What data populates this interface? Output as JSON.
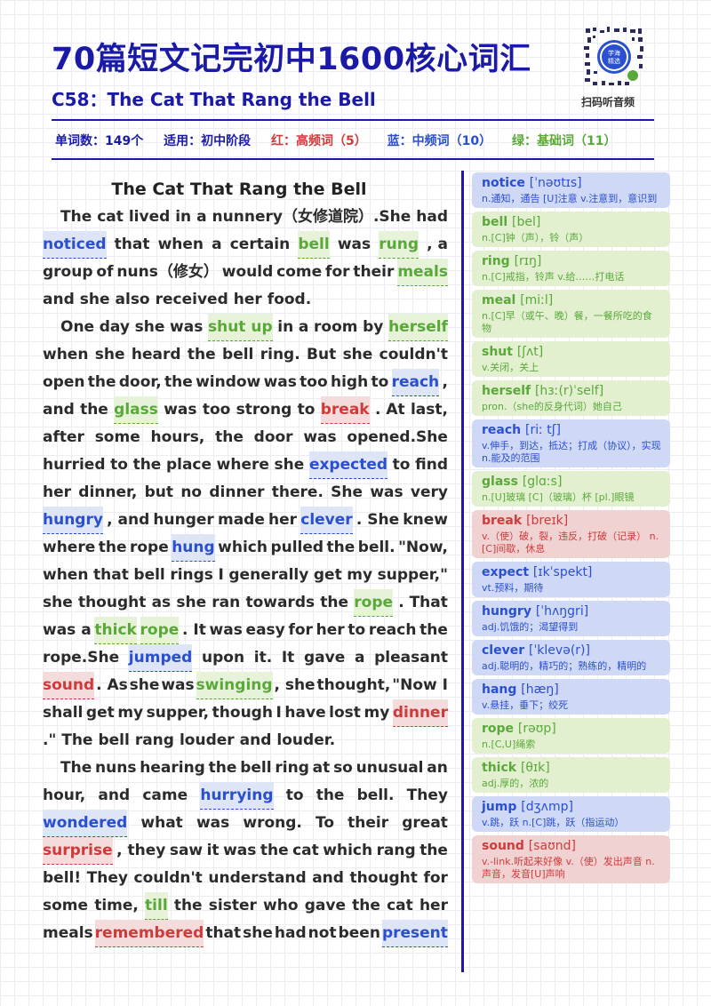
{
  "header": {
    "title": "70篇短文记完初中1600核心词汇",
    "subtitle": "C58：The Cat That Rang the Bell",
    "qr_label": "扫码听音频",
    "qr_badge": "学海 精选"
  },
  "stats": {
    "word_count": "单词数：149个",
    "level": "适用：初中阶段",
    "red": "红：高频词（5）",
    "blue": "蓝：中频词（10）",
    "green": "绿：基础词（11）"
  },
  "colors": {
    "red": "#d13a3a",
    "blue": "#2a4fcf",
    "green": "#5aa83a",
    "navy": "#1a1aa6"
  },
  "article": {
    "title": "The Cat That Rang the Bell",
    "lines": [
      {
        "indent": true,
        "tokens": [
          {
            "t": "The"
          },
          {
            "t": "cat"
          },
          {
            "t": "lived"
          },
          {
            "t": "in"
          },
          {
            "t": "a"
          },
          {
            "t": "nunnery（女修道院）.She"
          },
          {
            "t": "had"
          }
        ]
      },
      {
        "tokens": [
          {
            "t": "noticed",
            "c": "b"
          },
          {
            "t": "that"
          },
          {
            "t": "when"
          },
          {
            "t": "a"
          },
          {
            "t": "certain"
          },
          {
            "t": "bell",
            "c": "g"
          },
          {
            "t": "was"
          },
          {
            "t": "rung",
            "c": "g"
          },
          {
            "t": ", a"
          }
        ]
      },
      {
        "tokens": [
          {
            "t": "group"
          },
          {
            "t": "of"
          },
          {
            "t": "nuns（修女）"
          },
          {
            "t": "would"
          },
          {
            "t": "come"
          },
          {
            "t": "for"
          },
          {
            "t": "their"
          },
          {
            "t": "meals",
            "c": "g"
          }
        ]
      },
      {
        "last": true,
        "tokens": [
          {
            "t": "and"
          },
          {
            "t": "she"
          },
          {
            "t": "also"
          },
          {
            "t": "received"
          },
          {
            "t": "her"
          },
          {
            "t": "food."
          }
        ]
      },
      {
        "indent": true,
        "tokens": [
          {
            "t": "One"
          },
          {
            "t": "day"
          },
          {
            "t": "she"
          },
          {
            "t": "was"
          },
          {
            "t": "shut up",
            "c": "g"
          },
          {
            "t": "in"
          },
          {
            "t": "a"
          },
          {
            "t": "room"
          },
          {
            "t": "by"
          },
          {
            "t": "herself",
            "c": "g"
          }
        ]
      },
      {
        "tokens": [
          {
            "t": "when"
          },
          {
            "t": "she"
          },
          {
            "t": "heard"
          },
          {
            "t": "the"
          },
          {
            "t": "bell"
          },
          {
            "t": "ring."
          },
          {
            "t": "But"
          },
          {
            "t": "she"
          },
          {
            "t": "couldn't"
          }
        ]
      },
      {
        "tokens": [
          {
            "t": "open"
          },
          {
            "t": "the"
          },
          {
            "t": "door,"
          },
          {
            "t": "the"
          },
          {
            "t": "window"
          },
          {
            "t": "was"
          },
          {
            "t": "too"
          },
          {
            "t": "high"
          },
          {
            "t": "to"
          },
          {
            "t": "reach",
            "c": "b"
          },
          {
            "t": ","
          }
        ]
      },
      {
        "tokens": [
          {
            "t": "and"
          },
          {
            "t": "the"
          },
          {
            "t": "glass",
            "c": "g"
          },
          {
            "t": "was"
          },
          {
            "t": "too"
          },
          {
            "t": "strong"
          },
          {
            "t": "to"
          },
          {
            "t": "break",
            "c": "r"
          },
          {
            "t": ". At"
          },
          {
            "t": "last,"
          }
        ]
      },
      {
        "tokens": [
          {
            "t": "after"
          },
          {
            "t": "some"
          },
          {
            "t": "hours,"
          },
          {
            "t": "the"
          },
          {
            "t": "door"
          },
          {
            "t": "was"
          },
          {
            "t": "opened.She"
          }
        ]
      },
      {
        "tokens": [
          {
            "t": "hurried"
          },
          {
            "t": "to"
          },
          {
            "t": "the"
          },
          {
            "t": "place"
          },
          {
            "t": "where"
          },
          {
            "t": "she"
          },
          {
            "t": "expected",
            "c": "b"
          },
          {
            "t": "to"
          },
          {
            "t": "find"
          }
        ]
      },
      {
        "tokens": [
          {
            "t": "her"
          },
          {
            "t": "dinner,"
          },
          {
            "t": "but"
          },
          {
            "t": "no"
          },
          {
            "t": "dinner"
          },
          {
            "t": "there."
          },
          {
            "t": "She"
          },
          {
            "t": "was"
          },
          {
            "t": "very"
          }
        ]
      },
      {
        "tokens": [
          {
            "t": "hungry",
            "c": "b"
          },
          {
            "t": ", and"
          },
          {
            "t": "hunger"
          },
          {
            "t": "made"
          },
          {
            "t": "her"
          },
          {
            "t": "clever",
            "c": "b"
          },
          {
            "t": ". She"
          },
          {
            "t": "knew"
          }
        ]
      },
      {
        "tokens": [
          {
            "t": "where"
          },
          {
            "t": "the"
          },
          {
            "t": "rope"
          },
          {
            "t": "hung",
            "c": "b"
          },
          {
            "t": "which"
          },
          {
            "t": "pulled"
          },
          {
            "t": "the"
          },
          {
            "t": "bell."
          },
          {
            "t": "\"Now,"
          }
        ]
      },
      {
        "tokens": [
          {
            "t": "when"
          },
          {
            "t": "that"
          },
          {
            "t": "bell"
          },
          {
            "t": "rings"
          },
          {
            "t": "I"
          },
          {
            "t": "generally"
          },
          {
            "t": "get"
          },
          {
            "t": "my"
          },
          {
            "t": "supper,\""
          }
        ]
      },
      {
        "tokens": [
          {
            "t": "she"
          },
          {
            "t": "thought"
          },
          {
            "t": "as"
          },
          {
            "t": "she"
          },
          {
            "t": "ran"
          },
          {
            "t": "towards"
          },
          {
            "t": "the"
          },
          {
            "t": "rope",
            "c": "g"
          },
          {
            "t": ". That"
          }
        ]
      },
      {
        "tokens": [
          {
            "t": "was a"
          },
          {
            "t": "thick",
            "c": "g"
          },
          {
            "t": "rope",
            "c": "g"
          },
          {
            "t": ". It"
          },
          {
            "t": "was"
          },
          {
            "t": "easy"
          },
          {
            "t": "for"
          },
          {
            "t": "her"
          },
          {
            "t": "to"
          },
          {
            "t": "reach"
          },
          {
            "t": "the"
          }
        ]
      },
      {
        "tokens": [
          {
            "t": "rope.She"
          },
          {
            "t": "jumped",
            "c": "b"
          },
          {
            "t": "upon"
          },
          {
            "t": "it."
          },
          {
            "t": "It"
          },
          {
            "t": "gave"
          },
          {
            "t": "a"
          },
          {
            "t": "pleasant"
          }
        ]
      },
      {
        "tokens": [
          {
            "t": "sound",
            "c": "r"
          },
          {
            "t": ". As"
          },
          {
            "t": "she"
          },
          {
            "t": "was"
          },
          {
            "t": "swinging",
            "c": "g"
          },
          {
            "t": ", she"
          },
          {
            "t": "thought,"
          },
          {
            "t": "\"Now I"
          }
        ]
      },
      {
        "tokens": [
          {
            "t": "shall"
          },
          {
            "t": "get"
          },
          {
            "t": "my"
          },
          {
            "t": "supper,"
          },
          {
            "t": "though"
          },
          {
            "t": "I"
          },
          {
            "t": "have"
          },
          {
            "t": "lost"
          },
          {
            "t": "my"
          },
          {
            "t": "dinner",
            "c": "r"
          }
        ]
      },
      {
        "last": true,
        "tokens": [
          {
            "t": ".\" The"
          },
          {
            "t": "bell"
          },
          {
            "t": "rang"
          },
          {
            "t": "louder"
          },
          {
            "t": "and"
          },
          {
            "t": "louder."
          }
        ]
      },
      {
        "indent": true,
        "tokens": [
          {
            "t": "The"
          },
          {
            "t": "nuns"
          },
          {
            "t": "hearing"
          },
          {
            "t": "the"
          },
          {
            "t": "bell"
          },
          {
            "t": "ring"
          },
          {
            "t": "at"
          },
          {
            "t": "so"
          },
          {
            "t": "unusual"
          },
          {
            "t": "an"
          }
        ]
      },
      {
        "tokens": [
          {
            "t": "hour,"
          },
          {
            "t": "and"
          },
          {
            "t": "came"
          },
          {
            "t": "hurrying",
            "c": "b"
          },
          {
            "t": "to"
          },
          {
            "t": "the"
          },
          {
            "t": "bell."
          },
          {
            "t": "They"
          }
        ]
      },
      {
        "tokens": [
          {
            "t": "wondered",
            "c": "b"
          },
          {
            "t": "what"
          },
          {
            "t": "was"
          },
          {
            "t": "wrong."
          },
          {
            "t": "To"
          },
          {
            "t": "their"
          },
          {
            "t": "great"
          }
        ]
      },
      {
        "tokens": [
          {
            "t": "surprise",
            "c": "r"
          },
          {
            "t": ", they"
          },
          {
            "t": "saw"
          },
          {
            "t": "it"
          },
          {
            "t": "was"
          },
          {
            "t": "the"
          },
          {
            "t": "cat"
          },
          {
            "t": "which"
          },
          {
            "t": "rang"
          },
          {
            "t": "the"
          }
        ]
      },
      {
        "tokens": [
          {
            "t": "bell!"
          },
          {
            "t": "They"
          },
          {
            "t": "couldn't"
          },
          {
            "t": "understand"
          },
          {
            "t": "and"
          },
          {
            "t": "thought"
          },
          {
            "t": "for"
          }
        ]
      },
      {
        "tokens": [
          {
            "t": "some"
          },
          {
            "t": "time,"
          },
          {
            "t": "till",
            "c": "g"
          },
          {
            "t": "the"
          },
          {
            "t": "sister"
          },
          {
            "t": "who"
          },
          {
            "t": "gave"
          },
          {
            "t": "the"
          },
          {
            "t": "cat"
          },
          {
            "t": "her"
          }
        ]
      },
      {
        "tokens": [
          {
            "t": "meals"
          },
          {
            "t": "remembered",
            "c": "r"
          },
          {
            "t": "that"
          },
          {
            "t": "she"
          },
          {
            "t": "had"
          },
          {
            "t": "not"
          },
          {
            "t": "been"
          },
          {
            "t": "present",
            "c": "b"
          }
        ]
      }
    ]
  },
  "vocab": [
    {
      "word": "notice",
      "ph": "[ˈnəʊtɪs]",
      "def": "n.通知，通告 [U]注意 v.注意到，意识到",
      "c": "b"
    },
    {
      "word": "bell",
      "ph": "[bel]",
      "def": "n.[C]钟（声），铃（声）",
      "c": "g"
    },
    {
      "word": "ring",
      "ph": "[rɪŋ]",
      "def": "n.[C]戒指，铃声 v.给……打电话",
      "c": "g"
    },
    {
      "word": "meal",
      "ph": "[miːl]",
      "def": "n.[C]早（或午、晚）餐，一餐所吃的食物",
      "c": "g"
    },
    {
      "word": "shut",
      "ph": "[ʃʌt]",
      "def": "v.关闭，关上",
      "c": "g"
    },
    {
      "word": "herself",
      "ph": "[hɜː(r)ˈself]",
      "def": "pron.（she的反身代词）她自己",
      "c": "g"
    },
    {
      "word": "reach",
      "ph": "[riː tʃ]",
      "def": "v.伸手，到达，抵达；打成（协议），实现 n.能及的范围",
      "c": "b"
    },
    {
      "word": "glass",
      "ph": "[glɑːs]",
      "def": "n.[U]玻璃 [C]（玻璃）杯 [pl.]眼镜",
      "c": "g"
    },
    {
      "word": "break",
      "ph": "[breɪk]",
      "def": "v.（使）破，裂，违反，打破（记录） n.[C]间歇，休息",
      "c": "r"
    },
    {
      "word": "expect",
      "ph": "[ɪkˈspekt]",
      "def": "vt.预料，期待",
      "c": "b"
    },
    {
      "word": "hungry",
      "ph": "[ˈhʌŋgri]",
      "def": "adj.饥饿的；渴望得到",
      "c": "b"
    },
    {
      "word": "clever",
      "ph": "[ˈklevə(r)]",
      "def": "adj.聪明的，精巧的；熟练的，精明的",
      "c": "b"
    },
    {
      "word": "hang",
      "ph": "[hæŋ]",
      "def": "v.悬挂，垂下；绞死",
      "c": "b"
    },
    {
      "word": "rope",
      "ph": "[rəʊp]",
      "def": "n.[C,U]绳索",
      "c": "g"
    },
    {
      "word": "thick",
      "ph": "[θɪk]",
      "def": "adj.厚的，浓的",
      "c": "g"
    },
    {
      "word": "jump",
      "ph": "[dʒʌmp]",
      "def": "v.跳，跃 n.[C]跳，跃（指运动）",
      "c": "b"
    },
    {
      "word": "sound",
      "ph": "[saʊnd]",
      "def": "v.-link.听起来好像 v.（使）发出声音 n.声音，发音[U]声响",
      "c": "r"
    }
  ]
}
